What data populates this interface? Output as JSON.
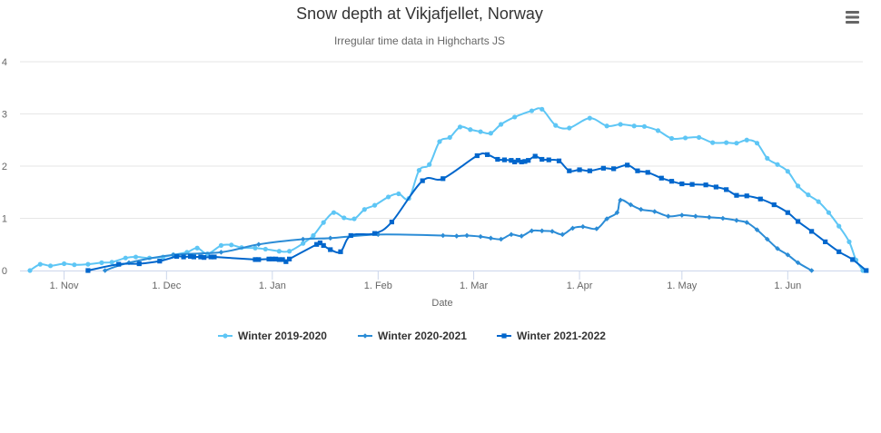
{
  "title": "Snow depth at Vikjafjellet, Norway",
  "subtitle": "Irregular time data in Highcharts JS",
  "menu_icon": "hamburger-menu-icon",
  "chart_data": {
    "type": "line",
    "title": "Snow depth at Vikjafjellet, Norway",
    "subtitle": "Irregular time data in Highcharts JS",
    "xlabel": "Date",
    "ylabel": "",
    "ylim": [
      0,
      4
    ],
    "yticks": [
      0,
      1,
      2,
      3,
      4
    ],
    "xlim": [
      "Oct 22",
      "Jun 15"
    ],
    "xticks": [
      {
        "date": "Nov 1",
        "label": "1. Nov"
      },
      {
        "date": "Dec 1",
        "label": "1. Dec"
      },
      {
        "date": "Jan 1",
        "label": "1. Jan"
      },
      {
        "date": "Feb 1",
        "label": "1. Feb"
      },
      {
        "date": "Mar 1",
        "label": "1. Mar"
      },
      {
        "date": "Apr 1",
        "label": "1. Apr"
      },
      {
        "date": "May 1",
        "label": "1. May"
      },
      {
        "date": "Jun 1",
        "label": "1. Jun"
      }
    ],
    "grid": true,
    "legend_position": "bottom-center",
    "series": [
      {
        "name": "Winter 2019-2020",
        "color": "#5ec6f5",
        "marker": "circle",
        "points": [
          [
            "Oct 22",
            0
          ],
          [
            "Oct 25",
            0.12
          ],
          [
            "Oct 28",
            0.09
          ],
          [
            "Nov 1",
            0.13
          ],
          [
            "Nov 4",
            0.11
          ],
          [
            "Nov 8",
            0.12
          ],
          [
            "Nov 12",
            0.15
          ],
          [
            "Nov 15",
            0.16
          ],
          [
            "Nov 19",
            0.24
          ],
          [
            "Nov 22",
            0.26
          ],
          [
            "Nov 26",
            0.24
          ],
          [
            "Nov 30",
            0.26
          ],
          [
            "Dec 3",
            0.3
          ],
          [
            "Dec 7",
            0.35
          ],
          [
            "Dec 10",
            0.43
          ],
          [
            "Dec 13",
            0.32
          ],
          [
            "Dec 17",
            0.48
          ],
          [
            "Dec 20",
            0.49
          ],
          [
            "Dec 23",
            0.44
          ],
          [
            "Dec 27",
            0.43
          ],
          [
            "Dec 30",
            0.41
          ],
          [
            "Jan 3",
            0.37
          ],
          [
            "Jan 6",
            0.37
          ],
          [
            "Jan 10",
            0.52
          ],
          [
            "Jan 13",
            0.67
          ],
          [
            "Jan 16",
            0.92
          ],
          [
            "Jan 19",
            1.11
          ],
          [
            "Jan 22",
            1.01
          ],
          [
            "Jan 25",
            0.99
          ],
          [
            "Jan 28",
            1.17
          ],
          [
            "Jan 31",
            1.25
          ],
          [
            "Feb 4",
            1.41
          ],
          [
            "Feb 7",
            1.47
          ],
          [
            "Feb 10",
            1.38
          ],
          [
            "Feb 13",
            1.92
          ],
          [
            "Feb 16",
            2.03
          ],
          [
            "Feb 19",
            2.47
          ],
          [
            "Feb 22",
            2.55
          ],
          [
            "Feb 25",
            2.75
          ],
          [
            "Feb 28",
            2.7
          ],
          [
            "Mar 3",
            2.66
          ],
          [
            "Mar 6",
            2.63
          ],
          [
            "Mar 9",
            2.8
          ],
          [
            "Mar 13",
            2.94
          ],
          [
            "Mar 18",
            3.06
          ],
          [
            "Mar 21",
            3.09
          ],
          [
            "Mar 25",
            2.78
          ],
          [
            "Mar 29",
            2.73
          ],
          [
            "Apr 4",
            2.92
          ],
          [
            "Apr 9",
            2.77
          ],
          [
            "Apr 13",
            2.8
          ],
          [
            "Apr 17",
            2.77
          ],
          [
            "Apr 20",
            2.76
          ],
          [
            "Apr 24",
            2.68
          ],
          [
            "Apr 28",
            2.53
          ],
          [
            "May 2",
            2.54
          ],
          [
            "May 6",
            2.55
          ],
          [
            "May 10",
            2.45
          ],
          [
            "May 14",
            2.45
          ],
          [
            "May 17",
            2.44
          ],
          [
            "May 20",
            2.5
          ],
          [
            "May 23",
            2.44
          ],
          [
            "May 26",
            2.15
          ],
          [
            "May 29",
            2.03
          ],
          [
            "Jun 1",
            1.9
          ],
          [
            "Jun 4",
            1.62
          ],
          [
            "Jun 7",
            1.45
          ],
          [
            "Jun 10",
            1.32
          ],
          [
            "Jun 13",
            1.11
          ],
          [
            "Jun 16",
            0.85
          ],
          [
            "Jun 19",
            0.55
          ],
          [
            "Jun 21",
            0.2
          ],
          [
            "Jun 23",
            0
          ]
        ]
      },
      {
        "name": "Winter 2020-2021",
        "color": "#2b8cd6",
        "marker": "diamond",
        "points": [
          [
            "Nov 13",
            0
          ],
          [
            "Nov 20",
            0.15
          ],
          [
            "Dec 3",
            0.3
          ],
          [
            "Dec 17",
            0.35
          ],
          [
            "Dec 28",
            0.5
          ],
          [
            "Jan 10",
            0.6
          ],
          [
            "Jan 18",
            0.62
          ],
          [
            "Feb 1",
            0.69
          ],
          [
            "Feb 20",
            0.67
          ],
          [
            "Feb 24",
            0.66
          ],
          [
            "Feb 27",
            0.67
          ],
          [
            "Mar 3",
            0.65
          ],
          [
            "Mar 6",
            0.62
          ],
          [
            "Mar 9",
            0.6
          ],
          [
            "Mar 12",
            0.69
          ],
          [
            "Mar 15",
            0.66
          ],
          [
            "Mar 18",
            0.76
          ],
          [
            "Mar 21",
            0.76
          ],
          [
            "Mar 24",
            0.75
          ],
          [
            "Mar 27",
            0.69
          ],
          [
            "Mar 30",
            0.81
          ],
          [
            "Apr 2",
            0.84
          ],
          [
            "Apr 6",
            0.8
          ],
          [
            "Apr 9",
            0.99
          ],
          [
            "Apr 12",
            1.11
          ],
          [
            "Apr 13",
            1.35
          ],
          [
            "Apr 16",
            1.26
          ],
          [
            "Apr 19",
            1.17
          ],
          [
            "Apr 23",
            1.13
          ],
          [
            "Apr 27",
            1.04
          ],
          [
            "May 1",
            1.06
          ],
          [
            "May 5",
            1.04
          ],
          [
            "May 9",
            1.02
          ],
          [
            "May 13",
            1.0
          ],
          [
            "May 17",
            0.96
          ],
          [
            "May 20",
            0.92
          ],
          [
            "May 23",
            0.78
          ],
          [
            "May 26",
            0.6
          ],
          [
            "May 29",
            0.42
          ],
          [
            "Jun 1",
            0.3
          ],
          [
            "Jun 4",
            0.15
          ],
          [
            "Jun 8",
            0
          ]
        ]
      },
      {
        "name": "Winter 2021-2022",
        "color": "#0066cc",
        "marker": "square",
        "points": [
          [
            "Nov 8",
            0
          ],
          [
            "Nov 17",
            0.12
          ],
          [
            "Nov 23",
            0.13
          ],
          [
            "Nov 29",
            0.18
          ],
          [
            "Dec 4",
            0.27
          ],
          [
            "Dec 6",
            0.26
          ],
          [
            "Dec 8",
            0.27
          ],
          [
            "Dec 9",
            0.26
          ],
          [
            "Dec 11",
            0.26
          ],
          [
            "Dec 12",
            0.25
          ],
          [
            "Dec 14",
            0.26
          ],
          [
            "Dec 15",
            0.26
          ],
          [
            "Dec 27",
            0.21
          ],
          [
            "Dec 28",
            0.21
          ],
          [
            "Dec 31",
            0.22
          ],
          [
            "Jan 1",
            0.22
          ],
          [
            "Jan 2",
            0.22
          ],
          [
            "Jan 3",
            0.21
          ],
          [
            "Jan 4",
            0.21
          ],
          [
            "Jan 5",
            0.17
          ],
          [
            "Jan 6",
            0.22
          ],
          [
            "Jan 14",
            0.5
          ],
          [
            "Jan 15",
            0.53
          ],
          [
            "Jan 16",
            0.48
          ],
          [
            "Jan 18",
            0.4
          ],
          [
            "Jan 21",
            0.36
          ],
          [
            "Jan 24",
            0.67
          ],
          [
            "Jan 31",
            0.71
          ],
          [
            "Feb 5",
            0.93
          ],
          [
            "Feb 14",
            1.72
          ],
          [
            "Feb 20",
            1.76
          ],
          [
            "Mar 2",
            2.2
          ],
          [
            "Mar 5",
            2.22
          ],
          [
            "Mar 8",
            2.13
          ],
          [
            "Mar 10",
            2.12
          ],
          [
            "Mar 12",
            2.11
          ],
          [
            "Mar 13",
            2.08
          ],
          [
            "Mar 14",
            2.11
          ],
          [
            "Mar 15",
            2.08
          ],
          [
            "Mar 16",
            2.09
          ],
          [
            "Mar 17",
            2.11
          ],
          [
            "Mar 19",
            2.19
          ],
          [
            "Mar 21",
            2.13
          ],
          [
            "Mar 23",
            2.12
          ],
          [
            "Mar 26",
            2.1
          ],
          [
            "Mar 29",
            1.91
          ],
          [
            "Apr 1",
            1.93
          ],
          [
            "Apr 4",
            1.91
          ],
          [
            "Apr 8",
            1.96
          ],
          [
            "Apr 11",
            1.95
          ],
          [
            "Apr 15",
            2.02
          ],
          [
            "Apr 18",
            1.91
          ],
          [
            "Apr 21",
            1.88
          ],
          [
            "Apr 25",
            1.77
          ],
          [
            "Apr 28",
            1.71
          ],
          [
            "May 1",
            1.66
          ],
          [
            "May 4",
            1.65
          ],
          [
            "May 8",
            1.64
          ],
          [
            "May 11",
            1.6
          ],
          [
            "May 14",
            1.55
          ],
          [
            "May 17",
            1.44
          ],
          [
            "May 20",
            1.43
          ],
          [
            "May 24",
            1.37
          ],
          [
            "May 28",
            1.26
          ],
          [
            "Jun 1",
            1.11
          ],
          [
            "Jun 4",
            0.94
          ],
          [
            "Jun 8",
            0.75
          ],
          [
            "Jun 12",
            0.55
          ],
          [
            "Jun 16",
            0.36
          ],
          [
            "Jun 20",
            0.21
          ],
          [
            "Jun 24",
            0
          ]
        ]
      }
    ]
  }
}
